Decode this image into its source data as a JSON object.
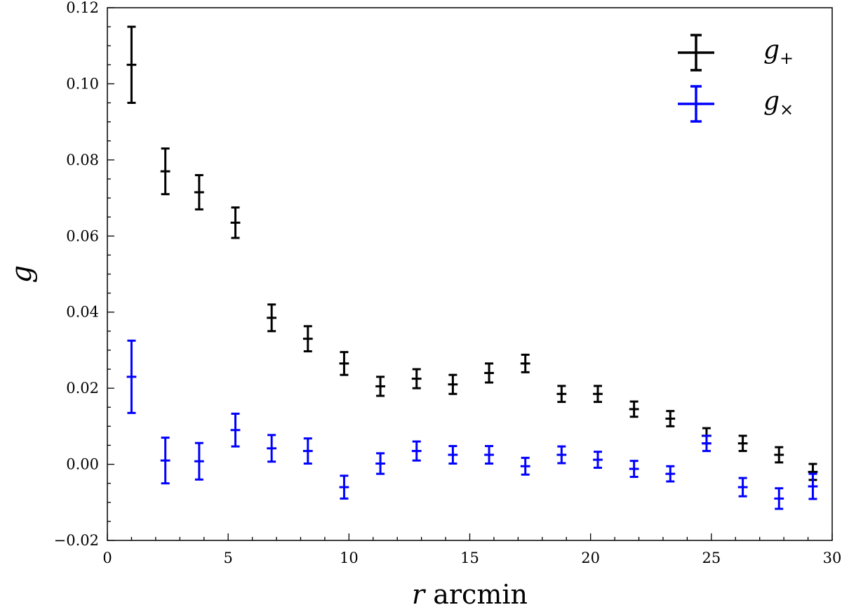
{
  "chart_data": {
    "type": "scatter",
    "xlabel": {
      "var": "r",
      "unit": "arcmin"
    },
    "ylabel": "g",
    "xlim": [
      0,
      30
    ],
    "ylim": [
      -0.02,
      0.12
    ],
    "xticks": [
      {
        "value": 0,
        "label": "0"
      },
      {
        "value": 5,
        "label": "5"
      },
      {
        "value": 10,
        "label": "10"
      },
      {
        "value": 15,
        "label": "15"
      },
      {
        "value": 20,
        "label": "20"
      },
      {
        "value": 25,
        "label": "25"
      },
      {
        "value": 30,
        "label": "30"
      }
    ],
    "yticks": [
      {
        "value": -0.02,
        "label": "−0.02"
      },
      {
        "value": 0.0,
        "label": "0.00"
      },
      {
        "value": 0.02,
        "label": "0.02"
      },
      {
        "value": 0.04,
        "label": "0.04"
      },
      {
        "value": 0.06,
        "label": "0.06"
      },
      {
        "value": 0.08,
        "label": "0.08"
      },
      {
        "value": 0.1,
        "label": "0.10"
      },
      {
        "value": 0.12,
        "label": "0.12"
      }
    ],
    "grid": false,
    "legend_position": "top-right",
    "series": [
      {
        "name": "g+",
        "legend_base": "g",
        "legend_sub": "+",
        "color": "#000000",
        "x": [
          1.0,
          2.4,
          3.8,
          5.3,
          6.8,
          8.3,
          9.8,
          11.3,
          12.8,
          14.3,
          15.8,
          17.3,
          18.8,
          20.3,
          21.8,
          23.3,
          24.8,
          26.3,
          27.8,
          29.2
        ],
        "y": [
          0.105,
          0.077,
          0.0715,
          0.0635,
          0.0385,
          0.033,
          0.0265,
          0.0205,
          0.0225,
          0.021,
          0.024,
          0.0265,
          0.0185,
          0.0185,
          0.0145,
          0.012,
          0.0075,
          0.0055,
          0.0025,
          -0.002
        ],
        "yerr": [
          0.01,
          0.006,
          0.0045,
          0.004,
          0.0035,
          0.0033,
          0.003,
          0.0025,
          0.0025,
          0.0025,
          0.0025,
          0.0023,
          0.0021,
          0.0021,
          0.002,
          0.002,
          0.002,
          0.002,
          0.002,
          0.0021
        ],
        "xerr": 0.2
      },
      {
        "name": "g×",
        "legend_base": "g",
        "legend_sub": "×",
        "color": "#0000ff",
        "x": [
          1.0,
          2.4,
          3.8,
          5.3,
          6.8,
          8.3,
          9.8,
          11.3,
          12.8,
          14.3,
          15.8,
          17.3,
          18.8,
          20.3,
          21.8,
          23.3,
          24.8,
          26.3,
          27.8,
          29.2
        ],
        "y": [
          0.023,
          0.001,
          0.0008,
          0.009,
          0.0042,
          0.0035,
          -0.006,
          0.0002,
          0.0035,
          0.0025,
          0.0025,
          -0.0005,
          0.0025,
          0.0012,
          -0.0012,
          -0.0025,
          0.0055,
          -0.006,
          -0.009,
          -0.0058
        ],
        "yerr": [
          0.0095,
          0.006,
          0.0048,
          0.0043,
          0.0035,
          0.0033,
          0.003,
          0.0027,
          0.0025,
          0.0023,
          0.0023,
          0.0022,
          0.0022,
          0.0021,
          0.0021,
          0.002,
          0.002,
          0.0024,
          0.0027,
          0.0033
        ],
        "xerr": 0.2
      }
    ]
  }
}
